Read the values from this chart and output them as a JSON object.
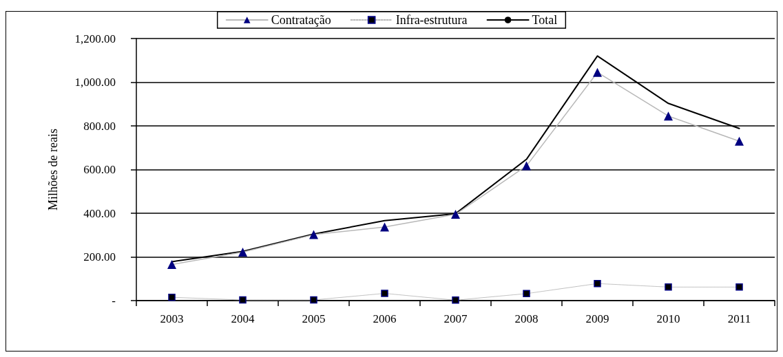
{
  "chart_data": {
    "type": "line",
    "ylabel": "Milhões de reais",
    "categories": [
      "2003",
      "2004",
      "2005",
      "2006",
      "2007",
      "2008",
      "2009",
      "2010",
      "2011"
    ],
    "series": [
      {
        "name": "Contratação",
        "color": "#000080",
        "marker": "triangle",
        "line_style": "solid",
        "values": [
          165,
          222,
          302,
          337,
          395,
          617,
          1045,
          845,
          730
        ]
      },
      {
        "name": "Infra-estrutura",
        "color": "#000000",
        "marker": "square",
        "line_style": "dotted",
        "values": [
          15,
          3,
          3,
          33,
          2,
          32,
          78,
          62,
          62
        ]
      },
      {
        "name": "Total",
        "color": "#000000",
        "marker": "none",
        "line_style": "solid",
        "values": [
          178,
          225,
          305,
          366,
          398,
          647,
          1120,
          903,
          788
        ]
      }
    ],
    "ylim": [
      0,
      1200
    ],
    "yticks": [
      {
        "value": 0,
        "label": "-"
      },
      {
        "value": 200,
        "label": "200.00"
      },
      {
        "value": 400,
        "label": "400.00"
      },
      {
        "value": 600,
        "label": "600.00"
      },
      {
        "value": 800,
        "label": "800.00"
      },
      {
        "value": 1000,
        "label": "1,000.00"
      },
      {
        "value": 1200,
        "label": "1,200.00"
      }
    ],
    "grid": "y",
    "legend": "top"
  }
}
